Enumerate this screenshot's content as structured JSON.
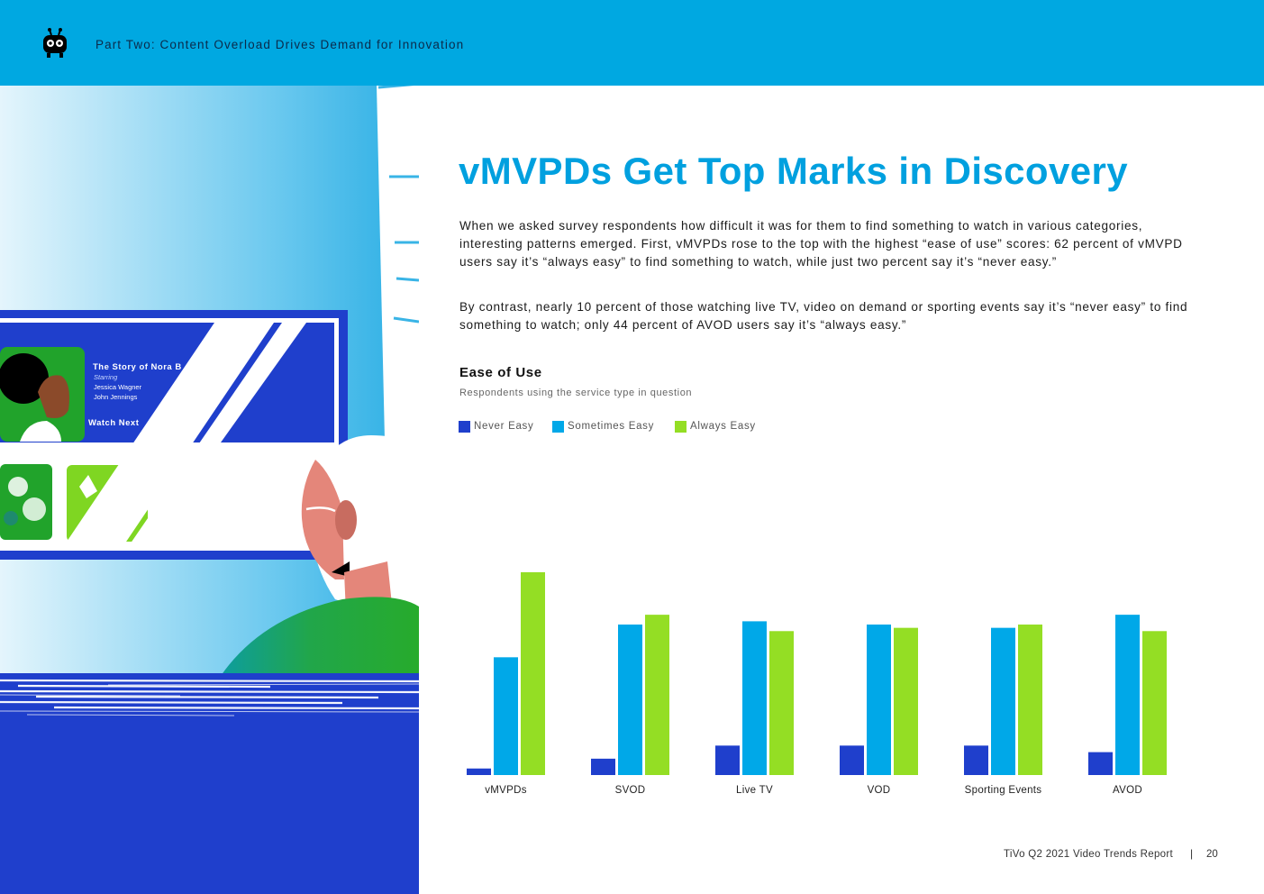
{
  "header": {
    "title": "Part Two: Content Overload Drives Demand for Innovation",
    "logo_icon": "tivo-robot-logo-icon"
  },
  "illustration": {
    "card_title": "The Story of Nora B",
    "card_starring_label": "Starring",
    "card_cast": [
      "Jessica Wagner",
      "John Jennings"
    ],
    "watch_next_label": "Watch Next"
  },
  "main": {
    "heading": "vMVPDs Get Top Marks in Discovery",
    "paragraphs": [
      "When we asked survey respondents how difficult it was for them to find something to watch in various categories, interesting patterns emerged. First, vMVPDs rose to the top with the highest “ease of use” scores: 62 percent of vMVPD users say it’s “always easy” to find something to watch, while just two percent say it’s “never easy.”",
      "By contrast, nearly 10 percent of those watching live TV, video on demand or sporting events say it’s “never easy” to find something to watch; only 44 percent of AVOD users say it’s “always easy.”"
    ]
  },
  "chart_data": {
    "type": "bar",
    "title": "Ease of Use",
    "subtitle": "Respondents using the service type in question",
    "legend_position": "top-left",
    "categories": [
      "vMVPDs",
      "SVOD",
      "Live TV",
      "VOD",
      "Sporting Events",
      "AVOD"
    ],
    "series": [
      {
        "name": "Never Easy",
        "color": "#1f3fcc",
        "values": [
          2,
          5,
          9,
          9,
          9,
          7
        ]
      },
      {
        "name": "Sometimes Easy",
        "color": "#00a8e8",
        "values": [
          36,
          46,
          47,
          46,
          45,
          49
        ]
      },
      {
        "name": "Always Easy",
        "color": "#94de24",
        "values": [
          62,
          49,
          44,
          45,
          46,
          44
        ]
      }
    ],
    "ylim": [
      0,
      100
    ],
    "grid": false
  },
  "footer": {
    "report_name": "TiVo Q2 2021 Video Trends Report",
    "separator": "|",
    "page_number": "20"
  }
}
